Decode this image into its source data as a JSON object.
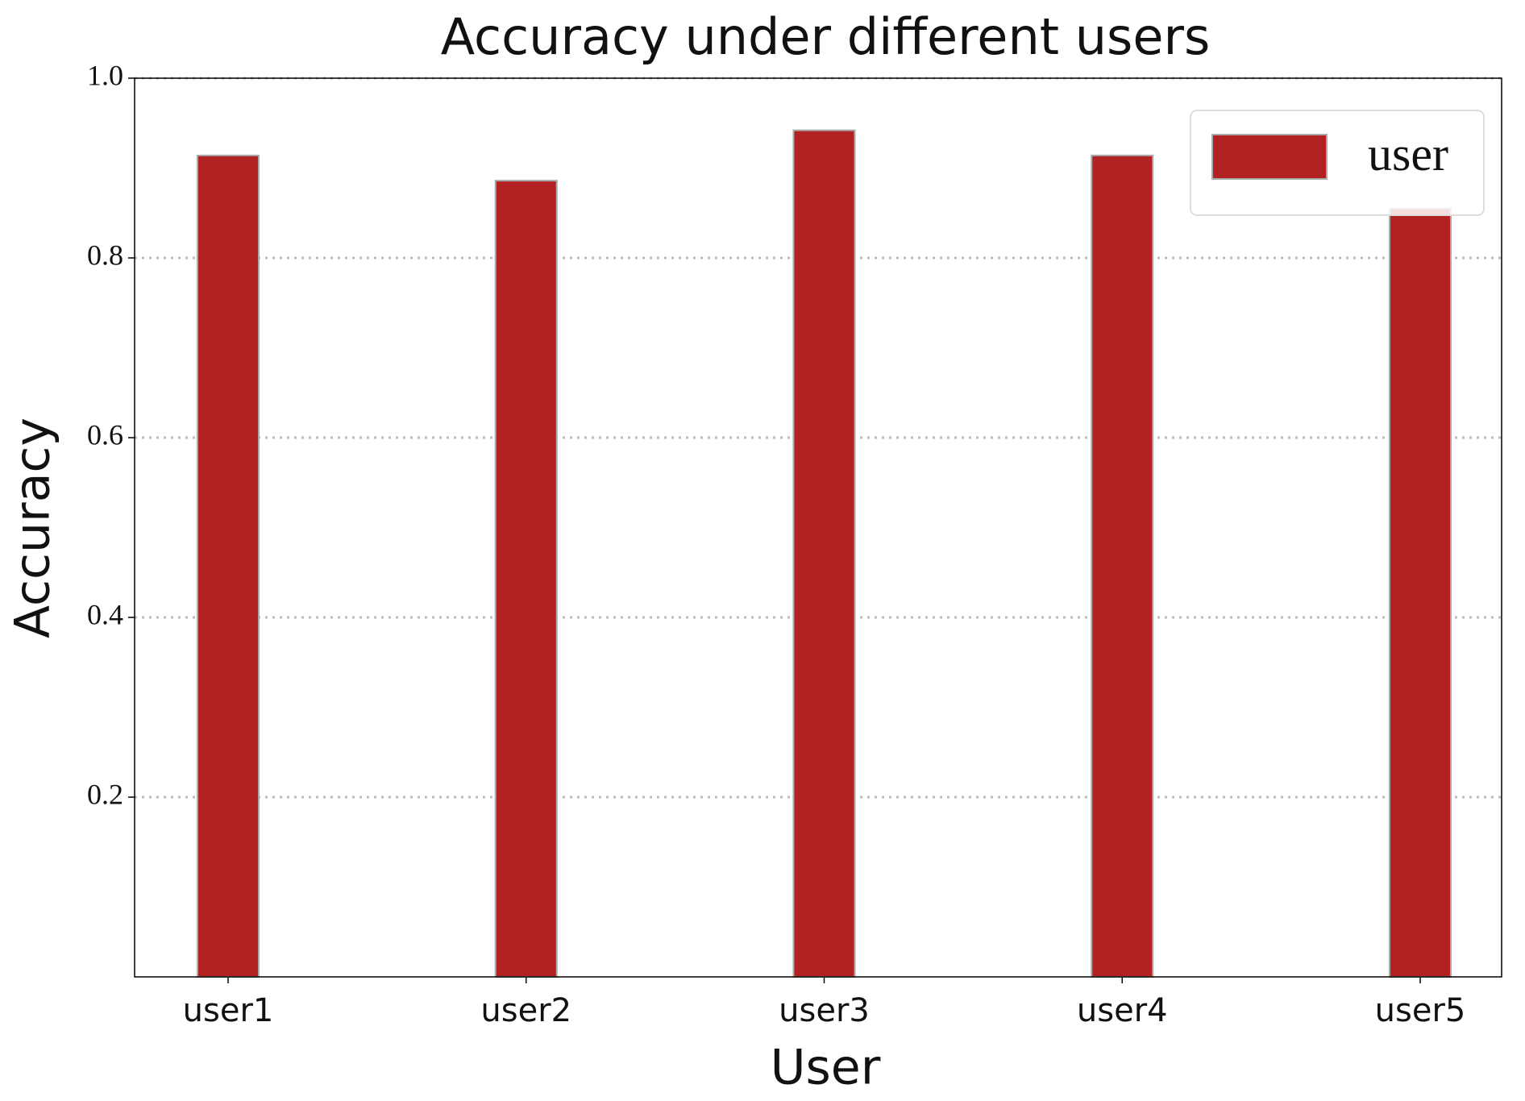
{
  "chart_data": {
    "type": "bar",
    "title": "Accuracy under different users",
    "x_label": "User",
    "y_label": "Accuracy",
    "categories": [
      "user1",
      "user2",
      "user3",
      "user4",
      "user5"
    ],
    "series": [
      {
        "name": "user",
        "color": "#b22222",
        "values": [
          0.914,
          0.886,
          0.942,
          0.914,
          0.855
        ]
      }
    ],
    "ylim": [
      0,
      1
    ],
    "yticks": [
      0.2,
      0.4,
      0.6,
      0.8,
      {
        "value": 1,
        "label": "1.0"
      }
    ],
    "grid": true,
    "legend": "upper right"
  }
}
